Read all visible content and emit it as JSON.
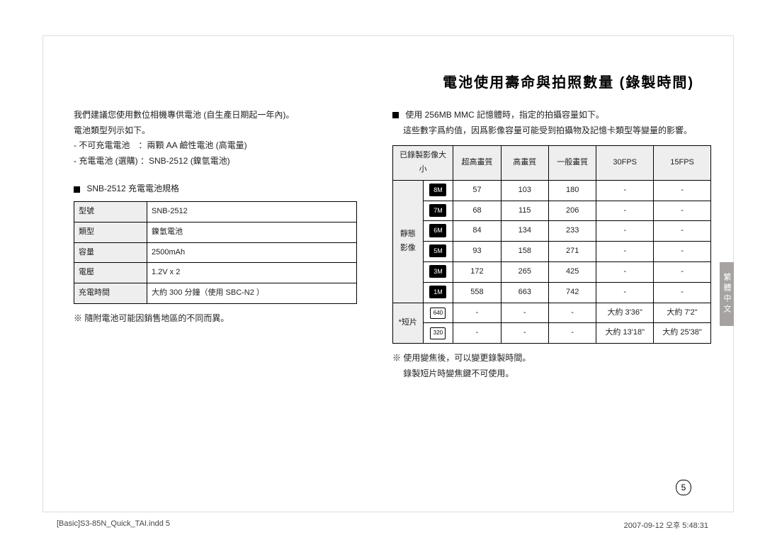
{
  "title": "電池使用壽命與拍照數量 (錄製時間)",
  "side_tab": "繁體中文",
  "page_number": "5",
  "footer": {
    "file": "[Basic]S3-85N_Quick_TAI.indd   5",
    "date": "2007-09-12   오후 5:48:31"
  },
  "left": {
    "intro1": "我們建議您使用數位相機專供電池 (自生產日期起一年內)。",
    "intro2": "電池類型列示如下。",
    "bullet1": "- 不可充電電池　：兩顆 AA 鹼性電池 (高電量)",
    "bullet2": "- 充電電池 (選購)  ：SNB-2512 (鎳氫電池)",
    "spec_heading": "SNB-2512 充電電池規格",
    "spec_table": {
      "rows": [
        {
          "label": "型號",
          "value": "SNB-2512"
        },
        {
          "label": "類型",
          "value": "鎳氫電池"
        },
        {
          "label": "容量",
          "value": "2500mAh"
        },
        {
          "label": "電壓",
          "value": "1.2V x 2"
        },
        {
          "label": "充電時間",
          "value": "大約 300 分鐘（使用 SBC-N2 ）"
        }
      ]
    },
    "note": "※ 隨附電池可能因銷售地區的不同而異。"
  },
  "right": {
    "intro1": "使用 256MB MMC 記憶體時，指定的拍攝容量如下。",
    "intro2": "這些數字爲約值，因爲影像容量可能受到拍攝物及記憶卡類型等變量的影響。",
    "cap_table": {
      "headers": [
        "已錄製影像大小",
        "超高畫質",
        "高畫質",
        "一般畫質",
        "30FPS",
        "15FPS"
      ],
      "group1": {
        "label": "靜態\n影像",
        "label_sep": "影像"
      },
      "group2": {
        "label": "*短片"
      },
      "still_rows": [
        {
          "size": "8M",
          "q1": "57",
          "q2": "103",
          "q3": "180",
          "f30": "-",
          "f15": "-"
        },
        {
          "size": "7M",
          "q1": "68",
          "q2": "115",
          "q3": "206",
          "f30": "-",
          "f15": "-"
        },
        {
          "size": "6M",
          "q1": "84",
          "q2": "134",
          "q3": "233",
          "f30": "-",
          "f15": "-"
        },
        {
          "size": "5M",
          "q1": "93",
          "q2": "158",
          "q3": "271",
          "f30": "-",
          "f15": "-"
        },
        {
          "size": "3M",
          "q1": "172",
          "q2": "265",
          "q3": "425",
          "f30": "-",
          "f15": "-"
        },
        {
          "size": "1M",
          "q1": "558",
          "q2": "663",
          "q3": "742",
          "f30": "-",
          "f15": "-"
        }
      ],
      "movie_rows": [
        {
          "size": "640",
          "q1": "-",
          "q2": "-",
          "q3": "-",
          "f30": "大約 3'36\"",
          "f15": "大約 7'2\""
        },
        {
          "size": "320",
          "q1": "-",
          "q2": "-",
          "q3": "-",
          "f30": "大約 13'18\"",
          "f15": "大約 25'38\""
        }
      ]
    },
    "note1": "※ 使用變焦後，可以變更錄製時間。",
    "note2": "　 錄製短片時變焦鍵不可使用。"
  }
}
